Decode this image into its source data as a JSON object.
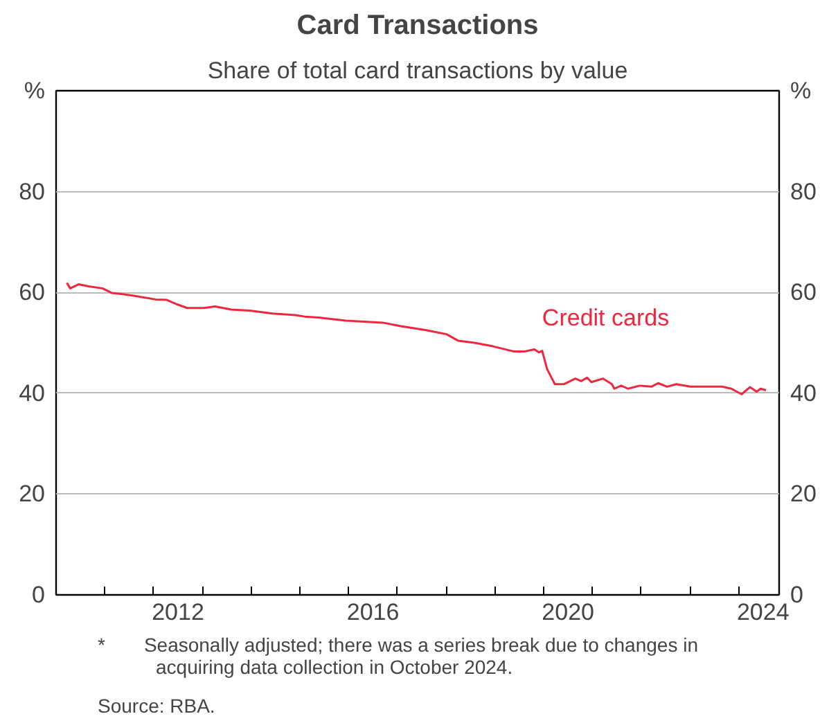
{
  "chart_data": {
    "type": "line",
    "title": "Card Transactions",
    "subtitle": "Share of total card transactions by value",
    "x": [
      2010.22,
      2010.29,
      2010.46,
      2010.67,
      2010.95,
      2011.14,
      2011.33,
      2011.61,
      2012.04,
      2012.27,
      2012.46,
      2012.69,
      2013.03,
      2013.26,
      2013.59,
      2013.97,
      2014.44,
      2014.91,
      2015.1,
      2015.38,
      2015.94,
      2016.32,
      2016.7,
      2017.07,
      2017.59,
      2018.01,
      2018.25,
      2018.58,
      2018.96,
      2019.38,
      2019.62,
      2019.81,
      2019.9,
      2019.97,
      2020.07,
      2020.23,
      2020.42,
      2020.65,
      2020.77,
      2020.89,
      2020.98,
      2021.22,
      2021.4,
      2021.45,
      2021.59,
      2021.73,
      2021.97,
      2022.21,
      2022.35,
      2022.53,
      2022.72,
      2023.01,
      2023.29,
      2023.66,
      2023.85,
      2024.06,
      2024.23,
      2024.37,
      2024.45,
      2024.56
    ],
    "series": [
      {
        "name": "Credit cards",
        "color": "#f0263c",
        "values": [
          61.9,
          60.8,
          61.6,
          61.2,
          60.8,
          59.9,
          59.7,
          59.3,
          58.6,
          58.5,
          57.7,
          56.9,
          56.9,
          57.2,
          56.6,
          56.4,
          55.8,
          55.5,
          55.2,
          55.0,
          54.4,
          54.2,
          54.0,
          53.3,
          52.5,
          51.7,
          50.4,
          50.0,
          49.3,
          48.3,
          48.3,
          48.7,
          48.1,
          48.4,
          44.8,
          41.8,
          41.8,
          42.9,
          42.4,
          43.1,
          42.2,
          42.9,
          41.8,
          40.9,
          41.5,
          40.9,
          41.5,
          41.3,
          42.0,
          41.3,
          41.8,
          41.3,
          41.3,
          41.3,
          40.9,
          39.8,
          41.2,
          40.3,
          40.9,
          40.6
        ]
      }
    ],
    "xlim": [
      2010,
      2024.83
    ],
    "xticks": [
      {
        "value": 2010,
        "label": null
      },
      {
        "value": 2011,
        "label": null
      },
      {
        "value": 2012,
        "label": null
      },
      {
        "value": 2013,
        "label": null
      },
      {
        "value": 2014,
        "label": null
      },
      {
        "value": 2015,
        "label": null
      },
      {
        "value": 2016,
        "label": null
      },
      {
        "value": 2017,
        "label": null
      },
      {
        "value": 2018,
        "label": null
      },
      {
        "value": 2019,
        "label": null
      },
      {
        "value": 2020,
        "label": null
      },
      {
        "value": 2021,
        "label": null
      },
      {
        "value": 2022,
        "label": null
      },
      {
        "value": 2023,
        "label": null
      },
      {
        "value": 2024,
        "label": null
      },
      {
        "value": 2012.5,
        "label": "2012"
      },
      {
        "value": 2016.5,
        "label": "2016"
      },
      {
        "value": 2020.5,
        "label": "2020"
      },
      {
        "value": 2024.5,
        "label": "2024"
      }
    ],
    "ylim": [
      0,
      100
    ],
    "yticks": [
      0,
      20,
      40,
      60,
      80,
      {
        "value": 100,
        "label": "%"
      }
    ],
    "y2lim": [
      0,
      100
    ],
    "y2ticks": [
      0,
      20,
      40,
      60,
      80,
      {
        "value": 100,
        "label": "%"
      }
    ],
    "grid": "y",
    "legend": false,
    "line_style": "solid",
    "marker": "none",
    "annotations": [
      "*  Seasonally adjusted; there was a series break due to changes in\n   acquiring data collection in October 2024.",
      "Source: RBA."
    ]
  }
}
